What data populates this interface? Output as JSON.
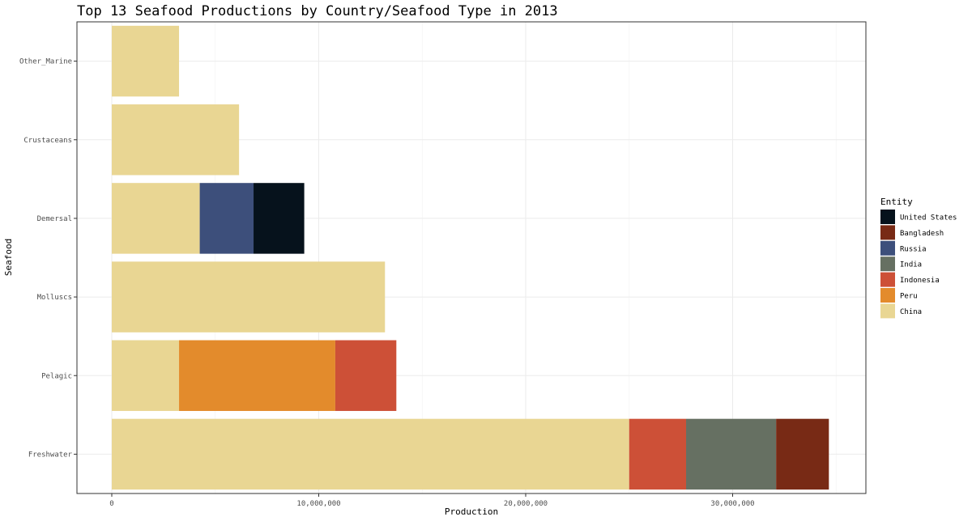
{
  "chart_data": {
    "type": "bar",
    "orientation": "horizontal",
    "stacked": true,
    "title": "Top 13 Seafood Productions by Country/Seafood Type in 2013",
    "xlabel": "Production",
    "ylabel": "Seafood",
    "xlim": [
      0,
      35000000
    ],
    "x_ticks": [
      0,
      10000000,
      20000000,
      30000000
    ],
    "x_tick_labels": [
      "0",
      "10,000,000",
      "20,000,000",
      "30,000,000"
    ],
    "grid": true,
    "legend_position": "right",
    "legend_title": "Entity",
    "categories": [
      "Freshwater",
      "Pelagic",
      "Molluscs",
      "Demersal",
      "Crustaceans",
      "Other_Marine"
    ],
    "series": [
      {
        "name": "China",
        "color": "#E9D693",
        "values": [
          25000000,
          3250000,
          13200000,
          4250000,
          6150000,
          3250000
        ]
      },
      {
        "name": "Peru",
        "color": "#E38B2C",
        "values": [
          0,
          7550000,
          0,
          0,
          0,
          0
        ]
      },
      {
        "name": "Indonesia",
        "color": "#CD5037",
        "values": [
          2750000,
          2950000,
          0,
          0,
          0,
          0
        ]
      },
      {
        "name": "India",
        "color": "#667062",
        "values": [
          4350000,
          0,
          0,
          0,
          0,
          0
        ]
      },
      {
        "name": "Russia",
        "color": "#3D4F7B",
        "values": [
          0,
          0,
          0,
          2600000,
          0,
          0
        ]
      },
      {
        "name": "Bangladesh",
        "color": "#782A15",
        "values": [
          2550000,
          0,
          0,
          0,
          0,
          0
        ]
      },
      {
        "name": "United States",
        "color": "#06121C",
        "values": [
          0,
          0,
          0,
          2450000,
          0,
          0
        ]
      }
    ],
    "legend_order": [
      "United States",
      "Bangladesh",
      "Russia",
      "India",
      "Indonesia",
      "Peru",
      "China"
    ]
  }
}
